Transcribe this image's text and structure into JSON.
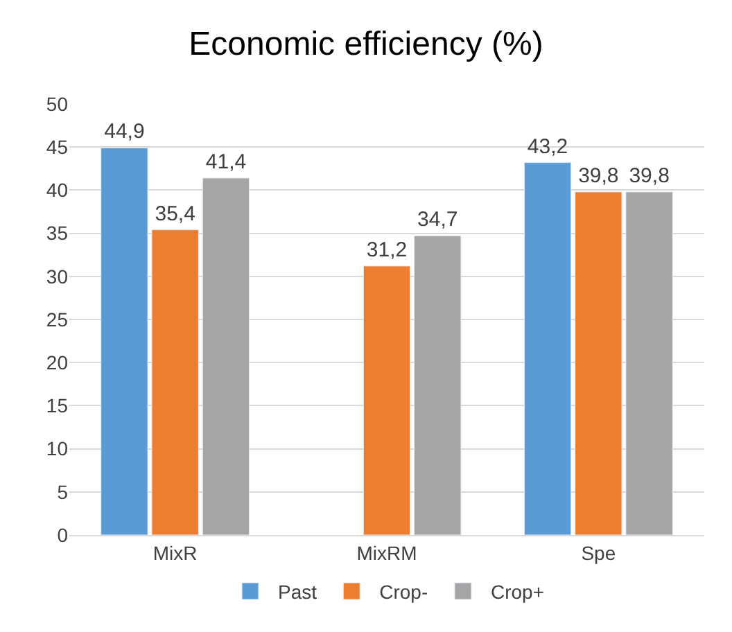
{
  "chart_data": {
    "type": "bar",
    "title": "Economic efficiency (%)",
    "categories": [
      "MixR",
      "MixRM",
      "Spe"
    ],
    "series": [
      {
        "name": "Past",
        "color": "#5b9bd5",
        "values": [
          44.9,
          null,
          43.2
        ],
        "value_labels": [
          "44,9",
          null,
          "43,2"
        ]
      },
      {
        "name": "Crop-",
        "color": "#ed7d31",
        "values": [
          35.4,
          31.2,
          39.8
        ],
        "value_labels": [
          "35,4",
          "31,2",
          "39,8"
        ]
      },
      {
        "name": "Crop+",
        "color": "#a5a5a5",
        "values": [
          41.4,
          34.7,
          39.8
        ],
        "value_labels": [
          "41,4",
          "34,7",
          "39,8"
        ]
      }
    ],
    "ylim": [
      0,
      50
    ],
    "yticks": [
      0,
      5,
      10,
      15,
      20,
      25,
      30,
      35,
      40,
      45,
      50
    ],
    "grid": "y",
    "legend": "bottom"
  }
}
